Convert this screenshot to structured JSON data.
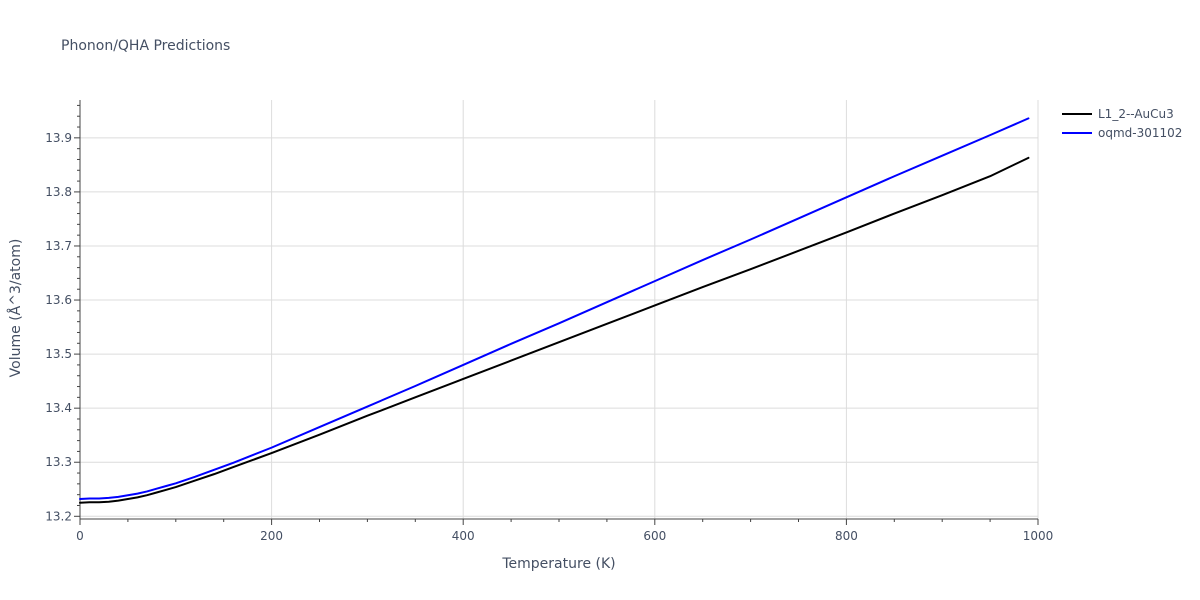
{
  "chart_data": {
    "type": "line",
    "title": "Phonon/QHA Predictions",
    "xlabel": "Temperature (K)",
    "ylabel": "Volume (Å^3/atom)",
    "xlim": [
      0,
      1000
    ],
    "ylim": [
      13.195,
      13.97
    ],
    "x_ticks": [
      0,
      200,
      400,
      600,
      800,
      1000
    ],
    "y_ticks": [
      13.2,
      13.3,
      13.4,
      13.5,
      13.6,
      13.7,
      13.8,
      13.9
    ],
    "x_tick_labels": [
      "0",
      "200",
      "400",
      "600",
      "800",
      "1000"
    ],
    "y_tick_labels": [
      "13.2",
      "13.3",
      "13.4",
      "13.5",
      "13.6",
      "13.7",
      "13.8",
      "13.9"
    ],
    "grid": true,
    "legend_position": "top-right",
    "series": [
      {
        "name": "L1_2--AuCu3",
        "color": "#000000",
        "x": [
          0,
          10,
          20,
          30,
          40,
          50,
          60,
          70,
          80,
          90,
          100,
          120,
          140,
          160,
          180,
          200,
          250,
          300,
          350,
          400,
          450,
          500,
          550,
          600,
          650,
          700,
          750,
          800,
          850,
          900,
          950,
          990
        ],
        "y": [
          13.225,
          13.226,
          13.226,
          13.227,
          13.229,
          13.232,
          13.235,
          13.239,
          13.244,
          13.249,
          13.254,
          13.266,
          13.278,
          13.291,
          13.304,
          13.317,
          13.351,
          13.386,
          13.42,
          13.454,
          13.488,
          13.522,
          13.556,
          13.59,
          13.624,
          13.657,
          13.691,
          13.725,
          13.76,
          13.794,
          13.829,
          13.863
        ]
      },
      {
        "name": "oqmd-301102",
        "color": "#0000ff",
        "x": [
          0,
          10,
          20,
          30,
          40,
          50,
          60,
          70,
          80,
          90,
          100,
          120,
          140,
          160,
          180,
          200,
          250,
          300,
          350,
          400,
          450,
          500,
          550,
          600,
          650,
          700,
          750,
          800,
          850,
          900,
          950,
          990
        ],
        "y": [
          13.232,
          13.233,
          13.233,
          13.234,
          13.236,
          13.239,
          13.242,
          13.246,
          13.251,
          13.256,
          13.261,
          13.273,
          13.286,
          13.299,
          13.313,
          13.327,
          13.365,
          13.403,
          13.441,
          13.48,
          13.519,
          13.557,
          13.596,
          13.635,
          13.674,
          13.712,
          13.751,
          13.79,
          13.829,
          13.867,
          13.905,
          13.936
        ]
      }
    ]
  }
}
